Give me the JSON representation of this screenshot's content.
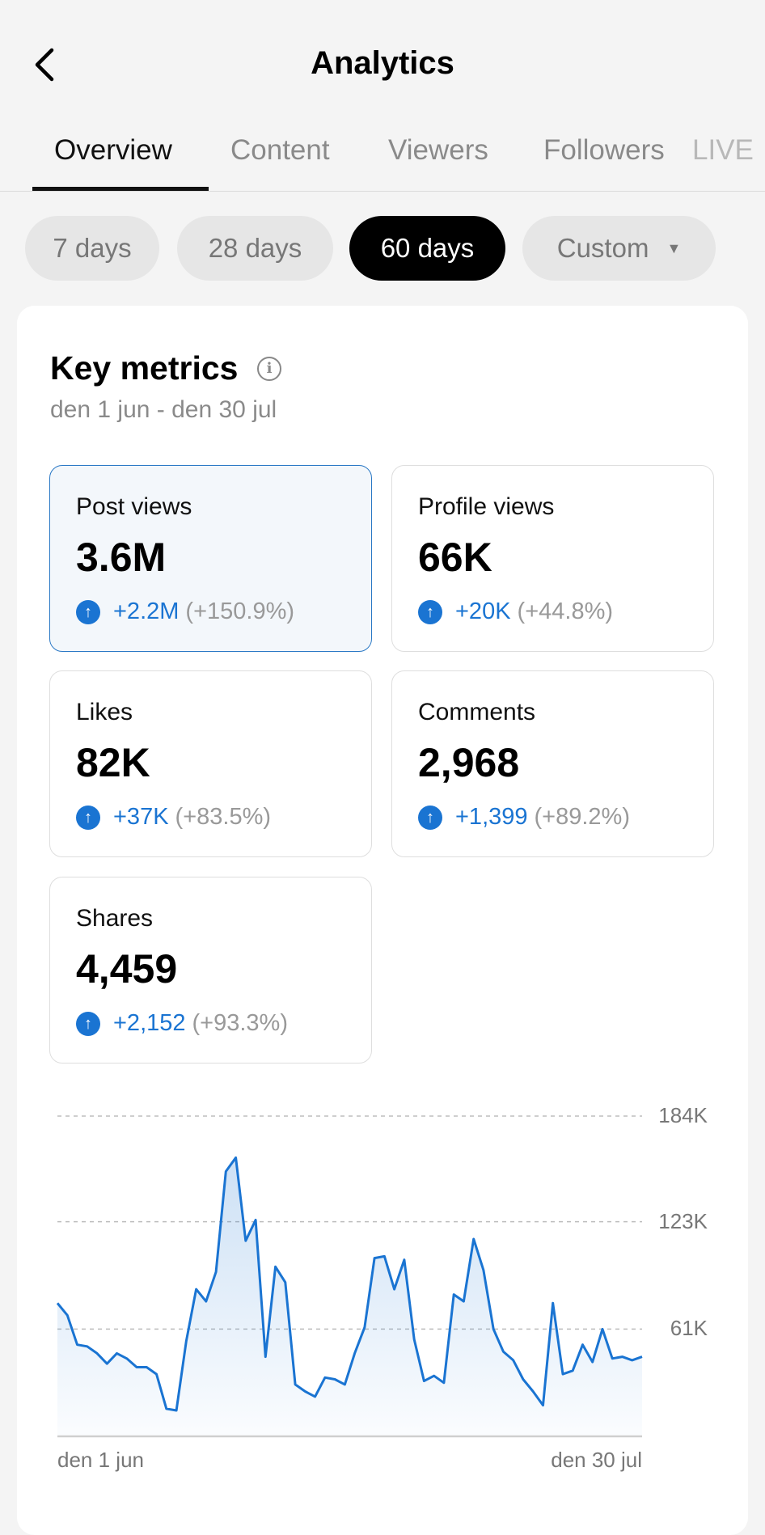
{
  "header": {
    "title": "Analytics",
    "back_icon": "chevron-left-icon"
  },
  "tabs": [
    {
      "label": "Overview",
      "active": true
    },
    {
      "label": "Content",
      "active": false
    },
    {
      "label": "Viewers",
      "active": false
    },
    {
      "label": "Followers",
      "active": false
    },
    {
      "label": "LIVE",
      "active": false
    }
  ],
  "periods": [
    {
      "label": "7 days",
      "active": false
    },
    {
      "label": "28 days",
      "active": false
    },
    {
      "label": "60 days",
      "active": true
    },
    {
      "label": "Custom",
      "active": false,
      "dropdown": true
    }
  ],
  "key_metrics": {
    "title": "Key metrics",
    "info_icon": "i",
    "date_range": "den 1 jun - den 30 jul",
    "accent_color": "#1a74d2",
    "metrics": [
      {
        "label": "Post views",
        "value": "3.6M",
        "delta": "+2.2M",
        "pct": "(+150.9%)",
        "selected": true
      },
      {
        "label": "Profile views",
        "value": "66K",
        "delta": "+20K",
        "pct": "(+44.8%)",
        "selected": false
      },
      {
        "label": "Likes",
        "value": "82K",
        "delta": "+37K",
        "pct": "(+83.5%)",
        "selected": false
      },
      {
        "label": "Comments",
        "value": "2,968",
        "delta": "+1,399",
        "pct": "(+89.2%)",
        "selected": false
      },
      {
        "label": "Shares",
        "value": "4,459",
        "delta": "+2,152",
        "pct": "(+93.3%)",
        "selected": false
      }
    ],
    "up_icon": "↑"
  },
  "chart_data": {
    "type": "area",
    "x_labels": [
      "den 1 jun",
      "den 30 jul"
    ],
    "y_ticks": [
      "184K",
      "123K",
      "61K"
    ],
    "y_tick_values": [
      184,
      123,
      61
    ],
    "ylim": [
      0,
      184
    ],
    "y_unit": "K",
    "grid": true,
    "color": "#1a74d2",
    "values": [
      76,
      69,
      52,
      51,
      47,
      41,
      47,
      44,
      39,
      39,
      35,
      15,
      14,
      54,
      84,
      77,
      94,
      152,
      160,
      112,
      124,
      45,
      97,
      88,
      29,
      25,
      22,
      33,
      32,
      29,
      47,
      62,
      102,
      103,
      84,
      101,
      55,
      31,
      34,
      30,
      81,
      77,
      113,
      95,
      61,
      48,
      43,
      32,
      25,
      17,
      76,
      35,
      37,
      52,
      42,
      61,
      44,
      45,
      43,
      45
    ]
  }
}
